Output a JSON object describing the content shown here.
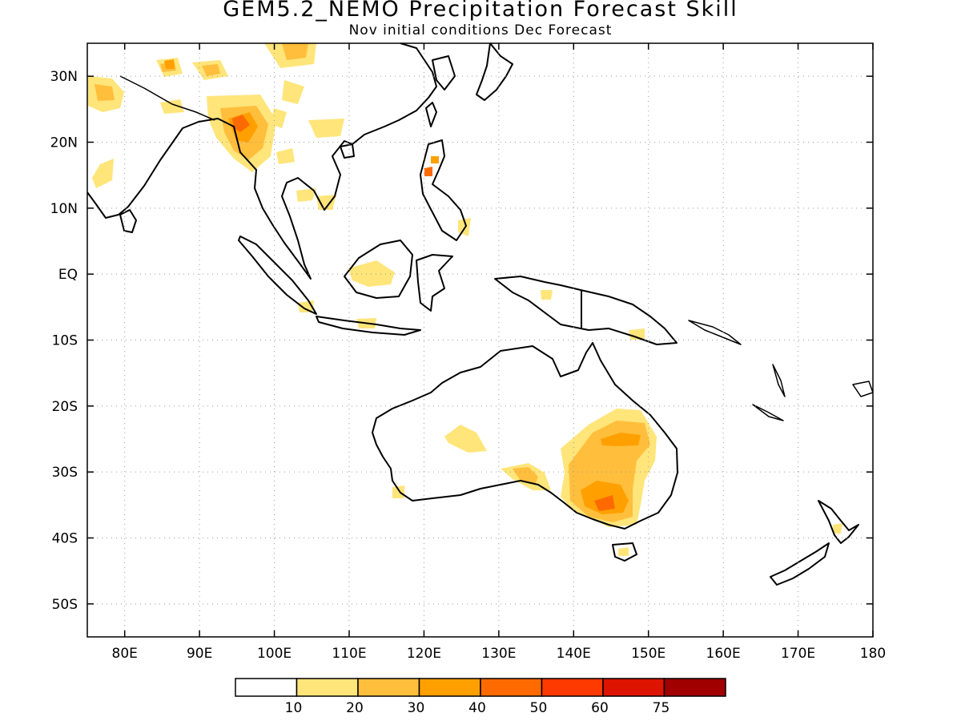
{
  "title": "GEM5.2_NEMO Precipitation Forecast Skill",
  "subtitle": "Nov initial conditions  Dec Forecast",
  "map": {
    "lon_range": [
      75,
      180
    ],
    "lat_range": [
      -55,
      35
    ],
    "lat_ticks": [
      {
        "value": 30,
        "label": "30N"
      },
      {
        "value": 20,
        "label": "20N"
      },
      {
        "value": 10,
        "label": "10N"
      },
      {
        "value": 0,
        "label": "EQ"
      },
      {
        "value": -10,
        "label": "10S"
      },
      {
        "value": -20,
        "label": "20S"
      },
      {
        "value": -30,
        "label": "30S"
      },
      {
        "value": -40,
        "label": "40S"
      },
      {
        "value": -50,
        "label": "50S"
      }
    ],
    "lon_ticks": [
      {
        "value": 80,
        "label": "80E"
      },
      {
        "value": 90,
        "label": "90E"
      },
      {
        "value": 100,
        "label": "100E"
      },
      {
        "value": 110,
        "label": "110E"
      },
      {
        "value": 120,
        "label": "120E"
      },
      {
        "value": 130,
        "label": "130E"
      },
      {
        "value": 140,
        "label": "140E"
      },
      {
        "value": 150,
        "label": "150E"
      },
      {
        "value": 160,
        "label": "160E"
      },
      {
        "value": 170,
        "label": "170E"
      },
      {
        "value": 180,
        "label": "180"
      }
    ],
    "grid": "dotted"
  },
  "colorbar": {
    "colors": [
      "#ffffff",
      "#ffe57a",
      "#ffbe3c",
      "#ffa000",
      "#ff6a00",
      "#ff3a00",
      "#dc1400",
      "#a00000"
    ],
    "labels": [
      "10",
      "20",
      "30",
      "40",
      "50",
      "60",
      "75"
    ]
  }
}
